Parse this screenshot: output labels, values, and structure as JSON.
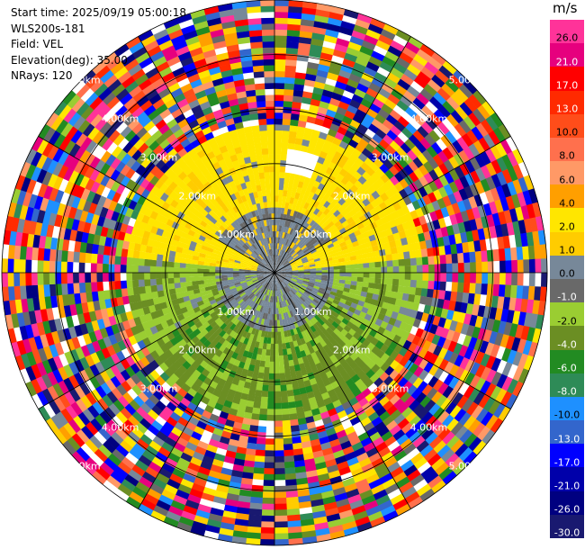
{
  "header": {
    "start_time": "Start time: 2025/09/19 05:00:18",
    "instrument": "WLS200s-181",
    "field": "Field: VEL",
    "elevation": "Elevation(deg): 35.00",
    "nrays": "NRays: 120"
  },
  "colorbar": {
    "unit": "m/s",
    "segments": [
      {
        "label": "26.0",
        "color": "#ff3399"
      },
      {
        "label": "21.0",
        "color": "#e6007e"
      },
      {
        "label": "17.0",
        "color": "#ff0000"
      },
      {
        "label": "13.0",
        "color": "#ff2a00"
      },
      {
        "label": "10.0",
        "color": "#ff4d1a"
      },
      {
        "label": "8.0",
        "color": "#ff704d"
      },
      {
        "label": "6.0",
        "color": "#ff9966"
      },
      {
        "label": "4.0",
        "color": "#ff9f00"
      },
      {
        "label": "2.0",
        "color": "#ffe600"
      },
      {
        "label": "1.0",
        "color": "#ffcc00"
      },
      {
        "label": "0.0",
        "color": "#778899"
      },
      {
        "label": "-1.0",
        "color": "#696969"
      },
      {
        "label": "-2.0",
        "color": "#9acd32"
      },
      {
        "label": "-4.0",
        "color": "#6b8e23"
      },
      {
        "label": "-6.0",
        "color": "#228b22"
      },
      {
        "label": "-8.0",
        "color": "#2e8b57"
      },
      {
        "label": "-10.0",
        "color": "#1e90ff"
      },
      {
        "label": "-13.0",
        "color": "#3366cc"
      },
      {
        "label": "-17.0",
        "color": "#0000ff"
      },
      {
        "label": "-21.0",
        "color": "#0000aa"
      },
      {
        "label": "-26.0",
        "color": "#000080"
      },
      {
        "label": "-30.0",
        "color": "#191970"
      }
    ]
  },
  "ppi": {
    "range_labels": [
      "1.00km",
      "2.00km",
      "3.00km",
      "4.00km",
      "5.00km"
    ],
    "rays": 120
  }
}
